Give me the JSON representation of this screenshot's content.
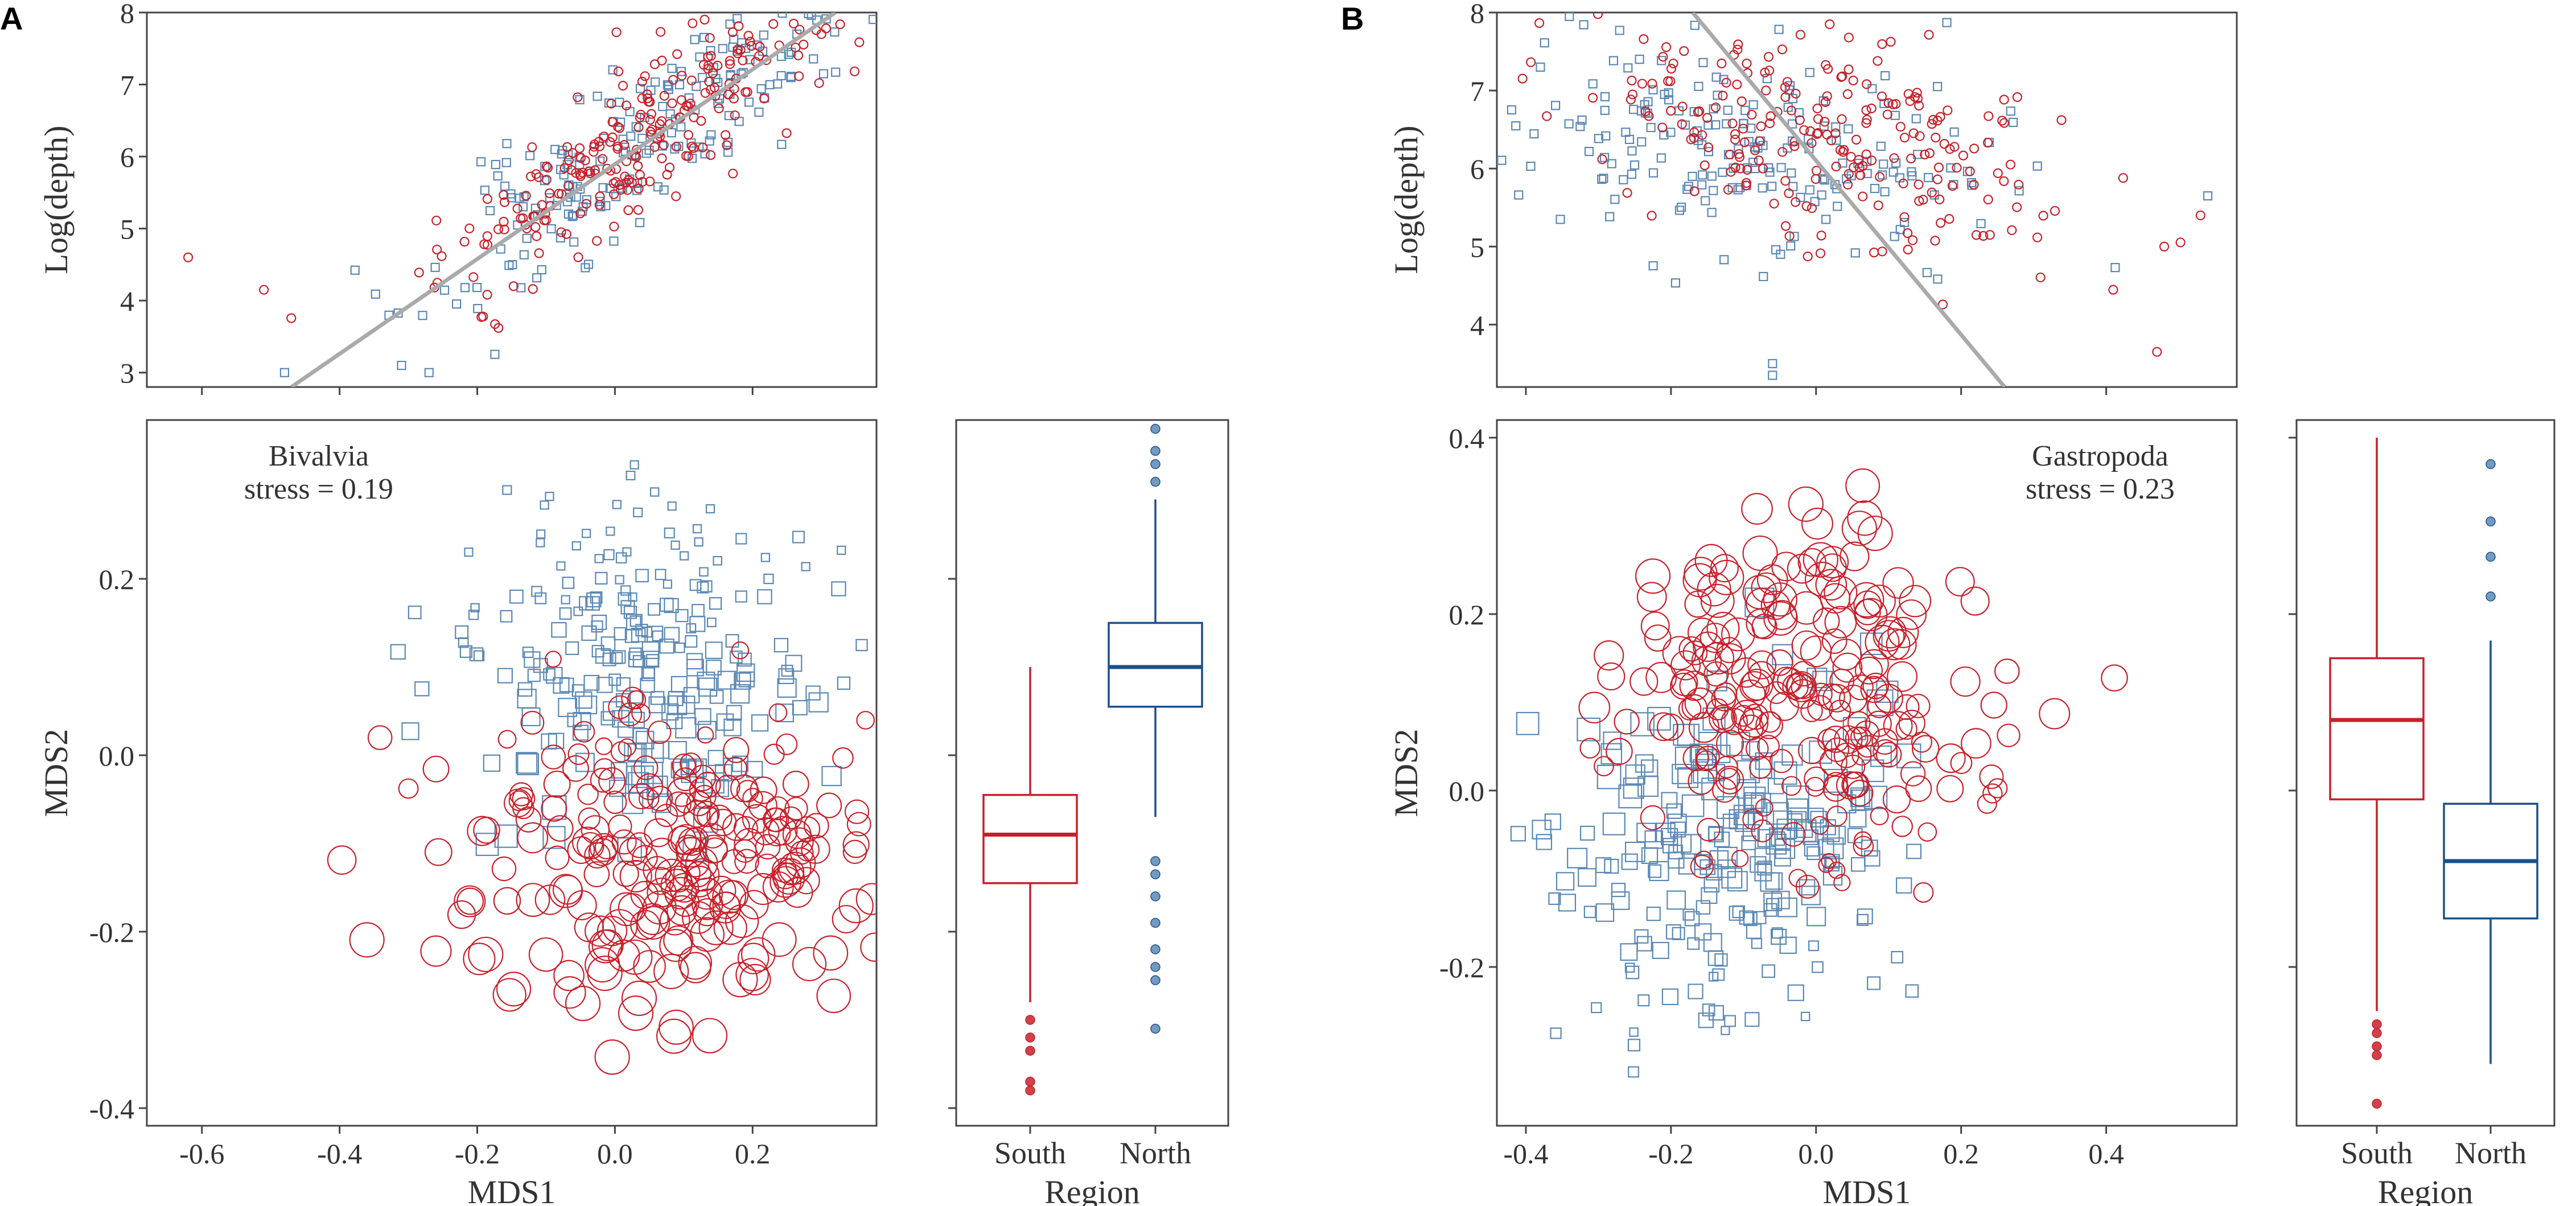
{
  "colors": {
    "south": "#c8202a",
    "north": "#1c4f8a",
    "north_points": "#5b88b4",
    "fit": "#aaaaaa",
    "frame": "#444444"
  },
  "chart_data": [
    {
      "panel": "A",
      "type": "scatter",
      "subplots": {
        "depth_scatter": {
          "type": "scatter",
          "ylabel": "Log(depth)",
          "xlim": [
            -0.68,
            0.38
          ],
          "ylim": [
            2.8,
            8.0
          ],
          "yticks": [
            "3",
            "4",
            "5",
            "6",
            "7",
            "8"
          ],
          "fit_line": {
            "x": [
              -0.47,
              0.32
            ],
            "y": [
              2.8,
              8.0
            ]
          },
          "south_cloud": {
            "center_x": 0.05,
            "center_y": 6.4,
            "slope": 6.6,
            "spread_x": 0.15,
            "spread_y": 0.55,
            "n": 260
          },
          "north_cloud": {
            "center_x": 0.05,
            "center_y": 6.3,
            "slope": 6.6,
            "spread_x": 0.16,
            "spread_y": 0.55,
            "n": 210
          },
          "outliers_south": [
            [
              -0.62,
              4.6
            ],
            [
              -0.51,
              4.15
            ],
            [
              0.3,
              7.7
            ]
          ],
          "outliers_north": [
            [
              -0.48,
              3.0
            ],
            [
              -0.31,
              3.1
            ],
            [
              -0.27,
              3.0
            ]
          ]
        },
        "mds_scatter": {
          "type": "scatter",
          "xlabel": "MDS1",
          "ylabel": "MDS2",
          "xlim": [
            -0.68,
            0.38
          ],
          "ylim": [
            -0.42,
            0.38
          ],
          "xticks": [
            "-0.6",
            "-0.4",
            "-0.2",
            "0.0",
            "0.2"
          ],
          "yticks": [
            "-0.4",
            "-0.2",
            "0.0",
            "0.2"
          ],
          "annotation": [
            "Bivalvia",
            "stress = 0.19"
          ],
          "north_cloud": {
            "center_x": 0.03,
            "center_y": 0.1,
            "spread_x": 0.13,
            "spread_y": 0.09,
            "n": 230
          },
          "south_cloud": {
            "center_x": 0.06,
            "center_y": -0.12,
            "spread_x": 0.14,
            "spread_y": 0.08,
            "n": 240
          }
        },
        "boxplot": {
          "type": "box",
          "xlabel": "Region",
          "categories": [
            "South",
            "North"
          ],
          "ylim": [
            -0.42,
            0.38
          ],
          "boxes": [
            {
              "name": "South",
              "q1": -0.145,
              "median": -0.09,
              "q3": -0.045,
              "whisker_low": -0.28,
              "whisker_high": 0.1,
              "outliers": [
                -0.3,
                -0.32,
                -0.335,
                -0.37,
                -0.38
              ]
            },
            {
              "name": "North",
              "q1": 0.055,
              "median": 0.1,
              "q3": 0.15,
              "whisker_low": -0.07,
              "whisker_high": 0.29,
              "outliers": [
                -0.12,
                -0.135,
                -0.16,
                -0.19,
                -0.22,
                -0.24,
                -0.255,
                -0.31,
                0.31,
                0.33,
                0.345,
                0.37
              ]
            }
          ]
        }
      }
    },
    {
      "panel": "B",
      "type": "scatter",
      "subplots": {
        "depth_scatter": {
          "type": "scatter",
          "ylabel": "Log(depth)",
          "xlim": [
            -0.44,
            0.58
          ],
          "ylim": [
            3.2,
            8.0
          ],
          "yticks": [
            "4",
            "5",
            "6",
            "7",
            "8"
          ],
          "fit_line": {
            "x": [
              -0.17,
              0.26
            ],
            "y": [
              8.0,
              3.2
            ]
          },
          "south_cloud": {
            "center_x": 0.02,
            "center_y": 6.4,
            "slope": -2.0,
            "spread_x": 0.17,
            "spread_y": 0.65,
            "n": 230
          },
          "north_cloud": {
            "center_x": -0.08,
            "center_y": 6.3,
            "slope": -1.5,
            "spread_x": 0.17,
            "spread_y": 0.7,
            "n": 200
          },
          "outliers_south": [
            [
              0.53,
              5.4
            ],
            [
              0.47,
              3.65
            ],
            [
              0.48,
              5.0
            ]
          ],
          "outliers_north": [
            [
              -0.38,
              7.3
            ],
            [
              0.54,
              5.65
            ],
            [
              -0.06,
              3.35
            ],
            [
              -0.06,
              3.5
            ]
          ]
        },
        "mds_scatter": {
          "type": "scatter",
          "xlabel": "MDS1",
          "ylabel": "MDS2",
          "xlim": [
            -0.44,
            0.58
          ],
          "ylim": [
            -0.38,
            0.42
          ],
          "xticks": [
            "-0.4",
            "-0.2",
            "0.0",
            "0.2",
            "0.4"
          ],
          "yticks": [
            "-0.2",
            "0.0",
            "0.2",
            "0.4"
          ],
          "annotation": [
            "Gastropoda",
            "stress = 0.23"
          ],
          "south_cloud": {
            "center_x": -0.01,
            "center_y": 0.1,
            "spread_x": 0.13,
            "spread_y": 0.1,
            "n": 230
          },
          "north_cloud": {
            "center_x": -0.12,
            "center_y": -0.08,
            "spread_x": 0.12,
            "spread_y": 0.09,
            "n": 220
          }
        },
        "boxplot": {
          "type": "box",
          "xlabel": "Region",
          "categories": [
            "South",
            "North"
          ],
          "ylim": [
            -0.38,
            0.42
          ],
          "boxes": [
            {
              "name": "South",
              "q1": -0.01,
              "median": 0.08,
              "q3": 0.15,
              "whisker_low": -0.25,
              "whisker_high": 0.4,
              "outliers": [
                -0.265,
                -0.275,
                -0.29,
                -0.3,
                -0.355
              ]
            },
            {
              "name": "North",
              "q1": -0.145,
              "median": -0.08,
              "q3": -0.015,
              "whisker_low": -0.31,
              "whisker_high": 0.17,
              "outliers": [
                0.22,
                0.265,
                0.305,
                0.37
              ]
            }
          ]
        }
      }
    }
  ]
}
